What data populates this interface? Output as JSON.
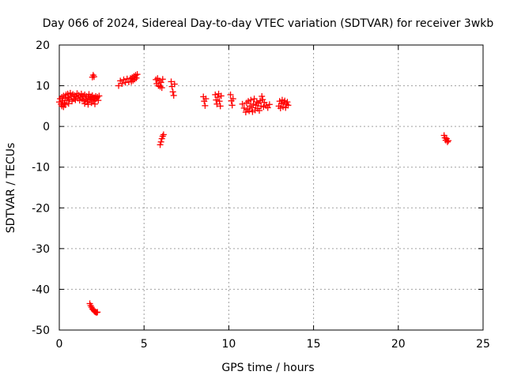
{
  "chart_data": {
    "type": "scatter",
    "title": "Day 066 of 2024, Sidereal Day-to-day VTEC variation (SDTVAR) for receiver 3wkb",
    "xlabel": "GPS time / hours",
    "ylabel": "SDTVAR / TECUs",
    "xlim": [
      0,
      25
    ],
    "ylim": [
      -50,
      20
    ],
    "xticks": [
      0,
      5,
      10,
      15,
      20,
      25
    ],
    "yticks": [
      -50,
      -40,
      -30,
      -20,
      -10,
      0,
      10,
      20
    ],
    "grid": true,
    "legend": false,
    "marker": "plus",
    "color": "#ff0000",
    "series": [
      {
        "values": [
          [
            0.0,
            6.0
          ],
          [
            0.05,
            6.8
          ],
          [
            0.1,
            5.5
          ],
          [
            0.15,
            7.2
          ],
          [
            0.2,
            6.3
          ],
          [
            0.25,
            7.5
          ],
          [
            0.3,
            5.8
          ],
          [
            0.35,
            6.9
          ],
          [
            0.4,
            7.8
          ],
          [
            0.45,
            6.4
          ],
          [
            0.5,
            8.0
          ],
          [
            0.55,
            7.1
          ],
          [
            0.6,
            6.6
          ],
          [
            0.65,
            8.2
          ],
          [
            0.7,
            7.4
          ],
          [
            0.75,
            6.2
          ],
          [
            0.8,
            7.9
          ],
          [
            0.85,
            6.8
          ],
          [
            0.9,
            7.6
          ],
          [
            0.95,
            6.5
          ],
          [
            1.0,
            7.3
          ],
          [
            1.05,
            8.1
          ],
          [
            1.1,
            6.9
          ],
          [
            1.15,
            7.7
          ],
          [
            1.2,
            6.4
          ],
          [
            1.25,
            7.2
          ],
          [
            1.3,
            8.0
          ],
          [
            1.35,
            6.7
          ],
          [
            1.4,
            7.5
          ],
          [
            1.45,
            6.3
          ],
          [
            1.5,
            7.8
          ],
          [
            1.55,
            6.6
          ],
          [
            1.6,
            7.4
          ],
          [
            1.65,
            6.1
          ],
          [
            1.7,
            7.0
          ],
          [
            1.75,
            7.9
          ],
          [
            1.8,
            6.5
          ],
          [
            1.85,
            7.3
          ],
          [
            1.9,
            6.8
          ],
          [
            1.95,
            7.6
          ],
          [
            2.0,
            6.2
          ],
          [
            2.05,
            7.1
          ],
          [
            2.1,
            6.7
          ],
          [
            2.15,
            7.4
          ],
          [
            2.2,
            6.9
          ],
          [
            2.25,
            7.2
          ],
          [
            2.3,
            6.4
          ],
          [
            2.35,
            7.5
          ],
          [
            0.15,
            5.0
          ],
          [
            0.25,
            4.8
          ],
          [
            0.35,
            5.3
          ],
          [
            0.55,
            5.6
          ],
          [
            1.5,
            5.6
          ],
          [
            1.7,
            5.4
          ],
          [
            1.9,
            5.8
          ],
          [
            2.1,
            5.5
          ],
          [
            2.0,
            12.6
          ],
          [
            2.05,
            12.2
          ],
          [
            1.95,
            12.1
          ],
          [
            1.8,
            -43.5
          ],
          [
            1.85,
            -44.0
          ],
          [
            1.9,
            -44.4
          ],
          [
            1.95,
            -44.8
          ],
          [
            2.0,
            -45.0
          ],
          [
            2.05,
            -45.3
          ],
          [
            2.1,
            -45.5
          ],
          [
            2.15,
            -45.6
          ],
          [
            2.2,
            -45.7
          ],
          [
            2.25,
            -45.6
          ],
          [
            3.5,
            10.0
          ],
          [
            3.6,
            11.2
          ],
          [
            3.7,
            10.5
          ],
          [
            3.8,
            11.5
          ],
          [
            3.9,
            10.8
          ],
          [
            4.0,
            11.7
          ],
          [
            4.1,
            10.9
          ],
          [
            4.2,
            11.8
          ],
          [
            4.25,
            11.0
          ],
          [
            4.3,
            12.0
          ],
          [
            4.35,
            11.3
          ],
          [
            4.4,
            12.3
          ],
          [
            4.45,
            11.6
          ],
          [
            4.5,
            12.6
          ],
          [
            4.55,
            11.9
          ],
          [
            4.6,
            12.8
          ],
          [
            5.7,
            11.5
          ],
          [
            5.75,
            10.5
          ],
          [
            5.8,
            11.8
          ],
          [
            5.85,
            10.0
          ],
          [
            5.9,
            11.2
          ],
          [
            5.95,
            9.8
          ],
          [
            6.0,
            10.8
          ],
          [
            6.05,
            9.5
          ],
          [
            6.1,
            11.6
          ],
          [
            5.95,
            -4.5
          ],
          [
            6.0,
            -3.8
          ],
          [
            6.05,
            -3.0
          ],
          [
            6.1,
            -2.4
          ],
          [
            6.15,
            -2.0
          ],
          [
            6.6,
            11.0
          ],
          [
            6.65,
            9.8
          ],
          [
            6.7,
            8.5
          ],
          [
            6.75,
            7.6
          ],
          [
            6.8,
            10.4
          ],
          [
            8.5,
            7.3
          ],
          [
            8.55,
            6.2
          ],
          [
            8.6,
            5.1
          ],
          [
            8.65,
            6.8
          ],
          [
            9.2,
            7.8
          ],
          [
            9.25,
            6.5
          ],
          [
            9.3,
            5.5
          ],
          [
            9.35,
            7.2
          ],
          [
            9.4,
            8.0
          ],
          [
            9.45,
            6.2
          ],
          [
            9.5,
            5.0
          ],
          [
            9.55,
            7.5
          ],
          [
            10.1,
            7.8
          ],
          [
            10.15,
            6.3
          ],
          [
            10.2,
            5.2
          ],
          [
            10.25,
            6.8
          ],
          [
            10.8,
            5.5
          ],
          [
            10.9,
            4.5
          ],
          [
            11.0,
            3.5
          ],
          [
            11.05,
            5.8
          ],
          [
            11.1,
            4.2
          ],
          [
            11.15,
            6.2
          ],
          [
            11.2,
            3.8
          ],
          [
            11.25,
            5.0
          ],
          [
            11.3,
            6.5
          ],
          [
            11.35,
            4.6
          ],
          [
            11.4,
            3.6
          ],
          [
            11.45,
            5.5
          ],
          [
            11.5,
            6.8
          ],
          [
            11.55,
            4.0
          ],
          [
            11.6,
            5.2
          ],
          [
            11.65,
            6.0
          ],
          [
            11.7,
            4.4
          ],
          [
            11.75,
            5.7
          ],
          [
            11.8,
            3.9
          ],
          [
            11.85,
            6.3
          ],
          [
            11.9,
            5.0
          ],
          [
            11.95,
            7.4
          ],
          [
            12.0,
            6.6
          ],
          [
            12.05,
            4.8
          ],
          [
            12.1,
            5.9
          ],
          [
            12.2,
            5.1
          ],
          [
            12.3,
            4.6
          ],
          [
            12.4,
            5.4
          ],
          [
            12.95,
            5.0
          ],
          [
            13.0,
            6.2
          ],
          [
            13.05,
            4.5
          ],
          [
            13.1,
            5.6
          ],
          [
            13.15,
            6.5
          ],
          [
            13.2,
            4.8
          ],
          [
            13.25,
            5.9
          ],
          [
            13.3,
            6.3
          ],
          [
            13.35,
            4.6
          ],
          [
            13.4,
            5.5
          ],
          [
            13.45,
            6.0
          ],
          [
            13.5,
            5.2
          ],
          [
            22.7,
            -2.2
          ],
          [
            22.75,
            -2.8
          ],
          [
            22.8,
            -3.4
          ],
          [
            22.85,
            -3.0
          ],
          [
            22.9,
            -3.8
          ],
          [
            22.95,
            -3.5
          ]
        ]
      }
    ]
  }
}
